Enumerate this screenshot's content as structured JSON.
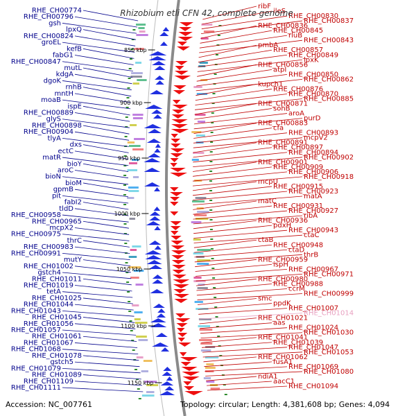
{
  "map": {
    "title": "Rhizobium etli CFN 42, complete genome",
    "accession": "Accession: NC_007761",
    "summary": "Topology: circular; Length: 4,381,608 bp; Genes: 4,094",
    "colors": {
      "left_labels": "#00008b",
      "right_labels": "#c00000",
      "highlight_label": "#e8a0c0",
      "backbone": "#8a8a8a",
      "forward_strand": "#2030e0",
      "reverse_strand": "#ee1010",
      "gc_skew": "#2b8a2b"
    },
    "ticks": [
      "850 kbp",
      "900 kbp",
      "950 kbp",
      "1000 kbp",
      "1050 kbp",
      "1100 kbp",
      "1150 kbp"
    ],
    "left_genes": [
      "RHE_CH00774",
      "RHE_CH00796",
      "gsh",
      "lpxQ",
      "RHE_CH00824",
      "groEL",
      "kefB",
      "fabG1",
      "RHE_CH00847",
      "mutL",
      "kdgA",
      "dgoK",
      "rnhB",
      "mntH",
      "moaB",
      "ispE",
      "RHE_CH00889",
      "glyS",
      "RHE_CH00898",
      "RHE_CH00904",
      "tlyA",
      "dxs",
      "ectC",
      "matR",
      "bioY",
      "aroC",
      "bioN",
      "bioM",
      "gpmB",
      "pit",
      "fabI2",
      "tldD",
      "RHE_CH00958",
      "RHE_CH00965",
      "mcpX2",
      "RHE_CH00975",
      "thrC",
      "RHE_CH00983",
      "RHE_CH00991",
      "mutY",
      "RHE_CH01002",
      "gstch4",
      "RHE_CH01011",
      "RHE_CH01019",
      "tetA",
      "RHE_CH01025",
      "RHE_CH01044",
      "RHE_CH01043",
      "RHE_CH01045",
      "RHE_CH01056",
      "RHE_CH01057",
      "RHE_CH01061",
      "RHE_CH01067",
      "RHE_CH01068",
      "RHE_CH01078",
      "gstch5",
      "RHE_CH01079",
      "RHE_CH01089",
      "RHE_CH01109",
      "RHE_CH01111"
    ],
    "right_genes": [
      "ribF",
      "ileS",
      "RHE_CH00830",
      "RHE_CH00837",
      "RHE_CH00836",
      "RHE_CH00845",
      "rluB",
      "RHE_CH00843",
      "pmbA",
      "RHE_CH00857",
      "RHE_CH00849",
      "lpxK",
      "RHE_CH00856",
      "atpI",
      "RHE_CH00850",
      "RHE_CH00862",
      "kupch1",
      "RHE_CH00876",
      "RHE_CH00870",
      "RHE_CH00885",
      "RHE_CH00871",
      "sohB",
      "aroA",
      "purD",
      "RHE_CH00883",
      "cfa",
      "RHE_CH00893",
      "mcpV2",
      "RHE_CH00891",
      "RHE_CH00897",
      "RHE_CH00894",
      "RHE_CH00902",
      "RHE_CH00901",
      "RHE_CH00909",
      "RHE_CH00906",
      "RHE_CH00918",
      "mcpU",
      "RHE_CH00915",
      "RHE_CH00923",
      "matA",
      "matC",
      "RHE_CH00931",
      "RHE_CH00927",
      "ribA",
      "RHE_CH00936",
      "pdxH",
      "RHE_CH00943",
      "ctaC",
      "ctaB",
      "RHE_CH00948",
      "ctaD",
      "thrB",
      "RHE_CH00959",
      "ispH",
      "RHE_CH00967",
      "RHE_CH00971",
      "RHE_CH00980",
      "RHE_CH00988",
      "ccrM",
      "RHE_CH00999",
      "smc",
      "ppdK",
      "RHE_CH01007",
      "RHE_CH01014",
      "RHE_CH01021",
      "aas",
      "RHE_CH01024",
      "RHE_CH01030",
      "RHE_CH01041",
      "RHE_CH01039",
      "RHE_CH01047",
      "RHE_CH01053",
      "RHE_CH01062",
      "fusA1",
      "RHE_CH01069",
      "RHE_CH01080",
      "ndiA1",
      "aacC1",
      "RHE_CH01094"
    ]
  }
}
